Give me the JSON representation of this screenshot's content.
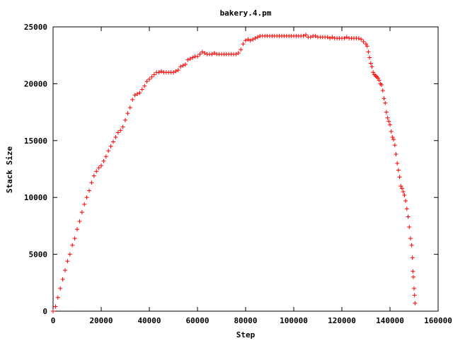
{
  "chart_data": {
    "type": "scatter",
    "title": "bakery.4.pm",
    "xlabel": "Step",
    "ylabel": "Stack Size",
    "xlim": [
      0,
      160000
    ],
    "ylim": [
      0,
      25000
    ],
    "xticks": [
      0,
      20000,
      40000,
      60000,
      80000,
      100000,
      120000,
      140000,
      160000
    ],
    "yticks": [
      0,
      5000,
      10000,
      15000,
      20000,
      25000
    ],
    "grid": false,
    "legend": "none",
    "marker": "plus",
    "color": "#ff0000",
    "series": [
      {
        "x": [
          0,
          1000,
          2000,
          3000,
          4000,
          5000,
          6000,
          7000,
          8000,
          9000,
          10000,
          11000,
          12000,
          13000,
          14000,
          15000,
          16000,
          17000,
          18000,
          19000,
          20000,
          21000,
          22000,
          23000,
          24000,
          25000,
          26000,
          27000,
          28000,
          29000,
          30000,
          31000,
          32000,
          33000,
          34000,
          35000,
          36000,
          37000,
          38000,
          39000,
          40000,
          41000,
          42000,
          43000,
          44000,
          45000,
          46000,
          47000,
          48000,
          49000,
          50000,
          51000,
          52000,
          53000,
          54000,
          55000,
          56000,
          57000,
          58000,
          59000,
          60000,
          61000,
          62000,
          63000,
          64000,
          65000,
          66000,
          67000,
          68000,
          69000,
          70000,
          71000,
          72000,
          73000,
          74000,
          75000,
          76000,
          77000,
          78000,
          79000,
          80000,
          81000,
          82000,
          83000,
          84000,
          85000,
          86000,
          87000,
          88000,
          89000,
          90000,
          91000,
          92000,
          93000,
          94000,
          95000,
          96000,
          97000,
          98000,
          99000,
          100000,
          101000,
          102000,
          103000,
          104000,
          105000,
          106000,
          107000,
          108000,
          109000,
          110000,
          111000,
          112000,
          113000,
          114000,
          115000,
          116000,
          117000,
          118000,
          119000,
          120000,
          121000,
          122000,
          123000,
          124000,
          125000,
          126000,
          127000,
          128000,
          129000,
          130000,
          130500,
          131000,
          131500,
          132000,
          132500,
          133000,
          133500,
          134000,
          134500,
          135000,
          135500,
          136000,
          136500,
          137000,
          137500,
          138000,
          138500,
          139000,
          139500,
          140000,
          140500,
          141000,
          141500,
          142000,
          142500,
          143000,
          143500,
          144000,
          144500,
          145000,
          145500,
          146000,
          146500,
          147000,
          147500,
          148000,
          148500,
          149000,
          149300,
          149500,
          149700,
          150000,
          150200,
          150400
        ],
        "y": [
          0,
          400,
          1200,
          2000,
          2800,
          3600,
          4400,
          5000,
          5800,
          6400,
          7200,
          7900,
          8700,
          9400,
          10000,
          10600,
          11300,
          11900,
          12300,
          12600,
          12800,
          13200,
          13600,
          14100,
          14500,
          14900,
          15300,
          15700,
          15900,
          16200,
          16800,
          17400,
          17900,
          18600,
          19000,
          19100,
          19200,
          19500,
          19800,
          20200,
          20400,
          20600,
          20800,
          21000,
          21000,
          21100,
          21000,
          21000,
          21000,
          21000,
          21000,
          21100,
          21200,
          21500,
          21600,
          21700,
          22100,
          22200,
          22300,
          22400,
          22400,
          22600,
          22800,
          22700,
          22600,
          22600,
          22600,
          22700,
          22600,
          22600,
          22600,
          22600,
          22600,
          22600,
          22600,
          22600,
          22600,
          22700,
          23000,
          23500,
          23800,
          23900,
          23800,
          23900,
          24000,
          24100,
          24200,
          24200,
          24200,
          24200,
          24200,
          24200,
          24200,
          24200,
          24200,
          24200,
          24200,
          24200,
          24200,
          24200,
          24200,
          24200,
          24200,
          24200,
          24200,
          24300,
          24100,
          24100,
          24200,
          24200,
          24100,
          24100,
          24100,
          24100,
          24100,
          24000,
          24100,
          24000,
          24000,
          24000,
          24000,
          24000,
          24100,
          24000,
          24000,
          24000,
          24000,
          24000,
          23900,
          23700,
          23500,
          23300,
          22800,
          22300,
          21800,
          21500,
          21000,
          20800,
          20700,
          20600,
          20500,
          20300,
          20000,
          19900,
          19400,
          18700,
          18300,
          17500,
          17000,
          16700,
          16400,
          15800,
          15300,
          15100,
          14600,
          13800,
          13000,
          12400,
          11800,
          11000,
          10800,
          10500,
          10200,
          9700,
          9000,
          8300,
          7400,
          6400,
          5800,
          4700,
          3500,
          3000,
          2000,
          1400,
          700
        ]
      }
    ]
  }
}
